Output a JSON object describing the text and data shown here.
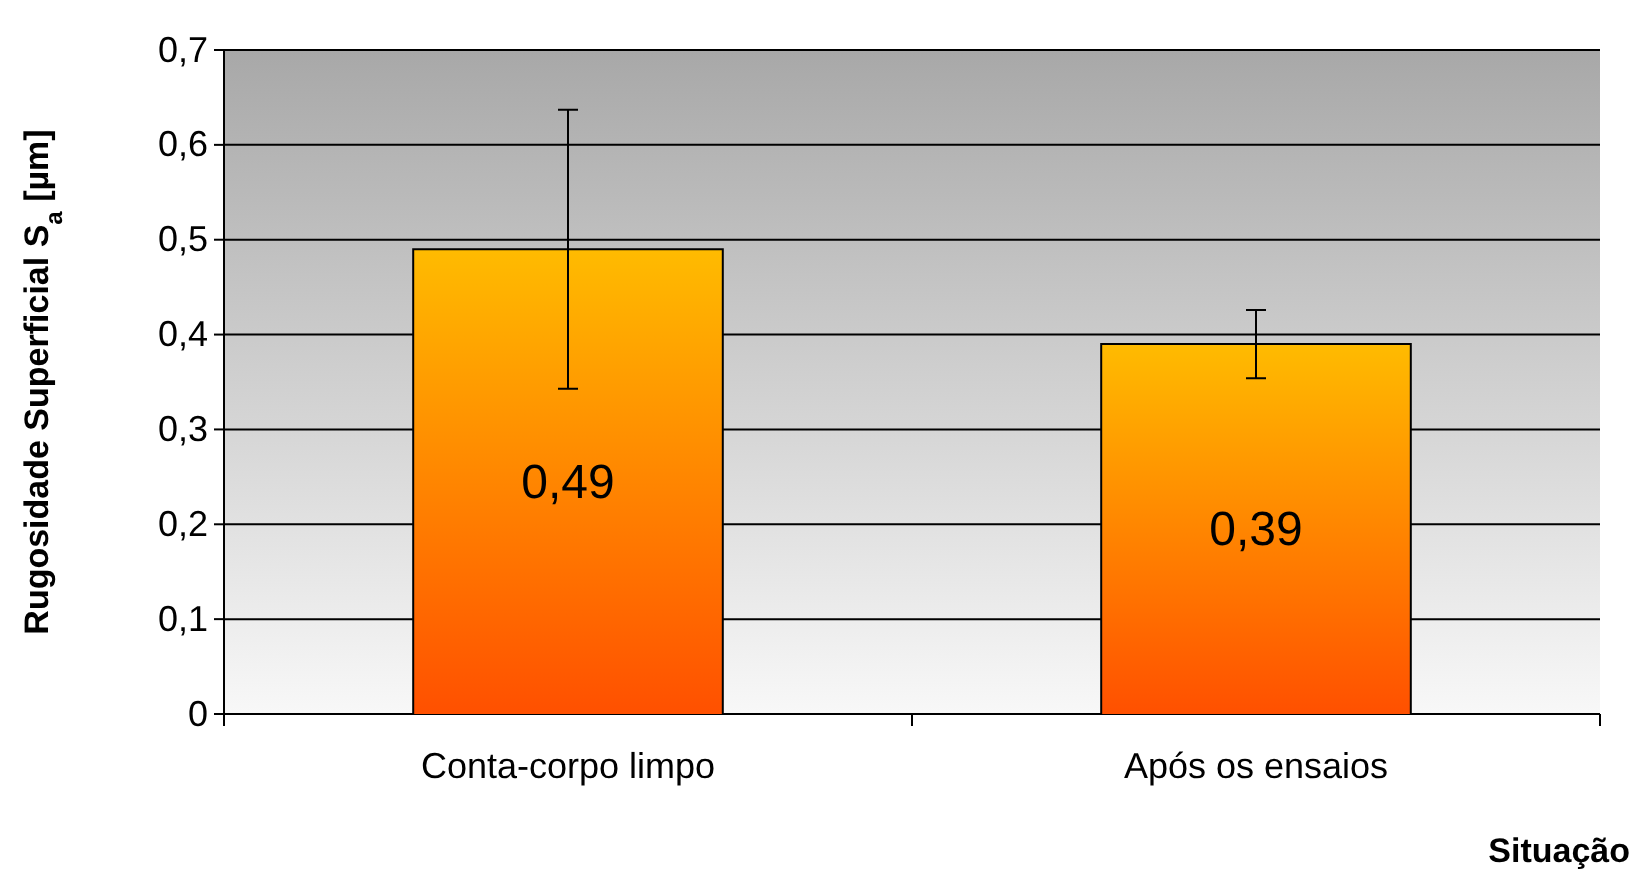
{
  "chart_data": {
    "type": "bar",
    "xlabel": "Situação",
    "ylabel": "Rugosidade Superficial S$_{a}$ [µm]",
    "categories": [
      "Conta-corpo limpo",
      "Após os ensaios"
    ],
    "values": [
      0.49,
      0.39
    ],
    "errors": [
      0.147,
      0.036
    ],
    "value_labels": [
      "0,49",
      "0,39"
    ],
    "color": "#ffbb00",
    "ylim": [
      0,
      0.7
    ],
    "yticks": [
      0,
      {
        "value": 0.1,
        "label": "0,1"
      },
      {
        "value": 0.2,
        "label": "0,2"
      },
      {
        "value": 0.3,
        "label": "0,3"
      },
      {
        "value": 0.4,
        "label": "0,4"
      },
      {
        "value": 0.5,
        "label": "0,5"
      },
      {
        "value": 0.6,
        "label": "0,6"
      },
      {
        "value": 0.7,
        "label": "0,7"
      }
    ],
    "grid": "y"
  }
}
